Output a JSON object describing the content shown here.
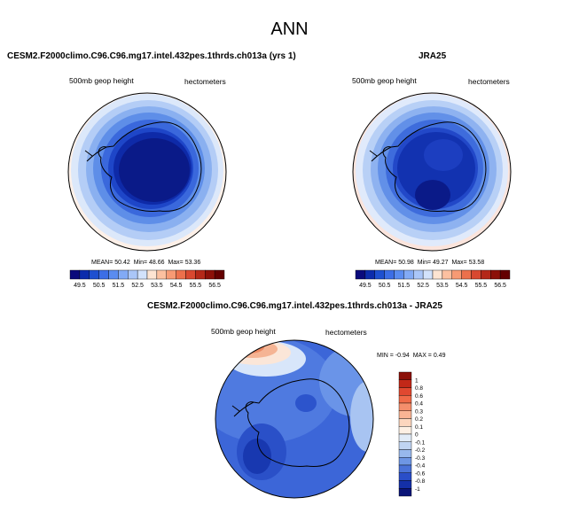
{
  "title": "ANN",
  "panels": [
    {
      "title": "CESM2.F2000climo.C96.C96.mg17.intel.432pes.1thrds.ch013a (yrs 1)",
      "variable": "500mb geop height",
      "units": "hectometers",
      "stats": {
        "mean_label": "MEAN=",
        "mean": "50.42",
        "min_label": "Min=",
        "min": "48.66",
        "max_label": "Max=",
        "max": "53.36"
      }
    },
    {
      "title": "JRA25",
      "variable": "500mb geop height",
      "units": "hectometers",
      "stats": {
        "mean_label": "MEAN=",
        "mean": "50.98",
        "min_label": "Min=",
        "min": "49.27",
        "max_label": "Max=",
        "max": "53.58"
      }
    },
    {
      "title": "CESM2.F2000climo.C96.C96.mg17.intel.432pes.1thrds.ch013a - JRA25",
      "variable": "500mb geop height",
      "units": "hectometers",
      "stats": {
        "min_label": "MIN =",
        "min": "-0.94",
        "max_label": "MAX =",
        "max": "0.49"
      }
    }
  ],
  "colorbar_abs": {
    "labels": [
      "49.5",
      "50.5",
      "51.5",
      "52.5",
      "53.5",
      "54.5",
      "55.5",
      "56.5"
    ],
    "colors": [
      "#0a0a7c",
      "#0c2cac",
      "#1e50d0",
      "#3c6ee6",
      "#5a8cf0",
      "#82aaf5",
      "#aac6f8",
      "#d2e2fb",
      "#fde4d2",
      "#fcc0a0",
      "#f79a74",
      "#ec704c",
      "#d84830",
      "#b42818",
      "#8c1008",
      "#640000"
    ]
  },
  "colorbar_diff": {
    "labels": [
      "1",
      "0.8",
      "0.6",
      "0.4",
      "0.3",
      "0.2",
      "0.1",
      "0",
      "-0.1",
      "-0.2",
      "-0.3",
      "-0.4",
      "-0.6",
      "-0.8",
      "-1"
    ],
    "colors": [
      "#8c1008",
      "#c22818",
      "#e04830",
      "#f06a48",
      "#f58e6c",
      "#f9b494",
      "#fcd6be",
      "#fdf0e4",
      "#e2ecf8",
      "#c0d4f2",
      "#98b8ec",
      "#6e96e4",
      "#4a72d8",
      "#2a4ec8",
      "#1430a8",
      "#0a1478"
    ]
  }
}
